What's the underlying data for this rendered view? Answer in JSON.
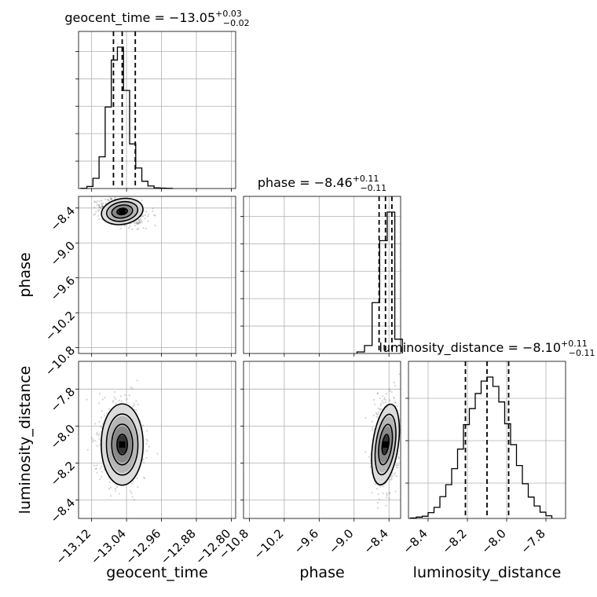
{
  "chart_data": {
    "type": "corner",
    "parameters": [
      {
        "name": "geocent_time",
        "title": {
          "prefix": "geocent_time = ",
          "value": "−13.05",
          "plus": "+0.03",
          "minus": "−0.02"
        },
        "range": [
          -13.15,
          -12.79
        ],
        "ticks": [
          -13.12,
          -13.04,
          -12.96,
          -12.88,
          -12.8
        ],
        "tick_labels": [
          "−13.12",
          "−13.04",
          "−12.96",
          "−12.88",
          "−12.80"
        ],
        "quantiles": [
          -13.07,
          -13.05,
          -13.02
        ],
        "hist_bins": [
          -13.145,
          -13.131,
          -13.117,
          -13.103,
          -13.089,
          -13.075,
          -13.061,
          -13.047,
          -13.033,
          -13.019,
          -13.005,
          -12.991,
          -12.977,
          -12.963,
          -12.949,
          -12.935
        ],
        "hist_counts": [
          1,
          12,
          60,
          187,
          480,
          757,
          833,
          578,
          263,
          121,
          43,
          15,
          4,
          2,
          1
        ]
      },
      {
        "name": "phase",
        "title": {
          "prefix": "phase = ",
          "value": "−8.46",
          "plus": "+0.11",
          "minus": "−0.11"
        },
        "range": [
          -10.9,
          -8.2
        ],
        "ticks": [
          -10.8,
          -10.2,
          -9.6,
          -9.0,
          -8.4
        ],
        "tick_labels": [
          "−10.8",
          "−10.2",
          "−9.6",
          "−9.0",
          "−8.4"
        ],
        "quantiles": [
          -8.57,
          -8.46,
          -8.35
        ],
        "hist_bins": [
          -8.95,
          -8.82,
          -8.69,
          -8.56,
          -8.43,
          -8.3,
          -8.17
        ],
        "hist_counts": [
          1,
          5,
          32,
          71,
          89,
          9
        ]
      },
      {
        "name": "luminosity_distance",
        "title": {
          "prefix": "luminosity_distance = ",
          "value": "−8.10",
          "plus": "+0.11",
          "minus": "−0.11"
        },
        "range": [
          -8.5,
          -7.7
        ],
        "ticks": [
          -8.4,
          -8.2,
          -8.0,
          -7.8
        ],
        "tick_labels": [
          "−8.4",
          "−8.2",
          "−8.0",
          "−7.8"
        ],
        "y_ticks": [
          -8.4,
          -8.2,
          -8.0,
          -7.8
        ],
        "y_tick_labels": [
          "−8.4",
          "−8.2",
          "−8.0",
          "−7.8"
        ],
        "quantiles": [
          -8.21,
          -8.1,
          -7.99
        ],
        "hist_bins": [
          -8.49,
          -8.46,
          -8.43,
          -8.4,
          -8.37,
          -8.34,
          -8.31,
          -8.28,
          -8.25,
          -8.22,
          -8.19,
          -8.16,
          -8.13,
          -8.1,
          -8.07,
          -8.04,
          -8.01,
          -7.98,
          -7.95,
          -7.92,
          -7.89,
          -7.86,
          -7.83,
          -7.8,
          -7.77
        ],
        "hist_counts": [
          1,
          3,
          5,
          13,
          25,
          49,
          76,
          112,
          156,
          211,
          247,
          281,
          309,
          318,
          297,
          262,
          213,
          166,
          119,
          78,
          48,
          28,
          14,
          6
        ]
      }
    ],
    "phase_y_ticks": [
      -8.4,
      -9.0,
      -9.6,
      -10.2,
      -10.8
    ],
    "phase_y_tick_labels": [
      "−8.4",
      "−9.0",
      "−9.6",
      "−10.2",
      "−10.8"
    ],
    "joint": [
      {
        "x": "geocent_time",
        "y": "phase",
        "mean": [
          -13.05,
          -8.46
        ],
        "sd": [
          0.024,
          0.11
        ],
        "rho": 0.25
      },
      {
        "x": "geocent_time",
        "y": "luminosity_distance",
        "mean": [
          -13.05,
          -8.1
        ],
        "sd": [
          0.024,
          0.11
        ],
        "rho": 0.0
      },
      {
        "x": "phase",
        "y": "luminosity_distance",
        "mean": [
          -8.46,
          -8.1
        ],
        "sd": [
          0.11,
          0.11
        ],
        "rho": -0.2
      }
    ],
    "grid": true
  }
}
